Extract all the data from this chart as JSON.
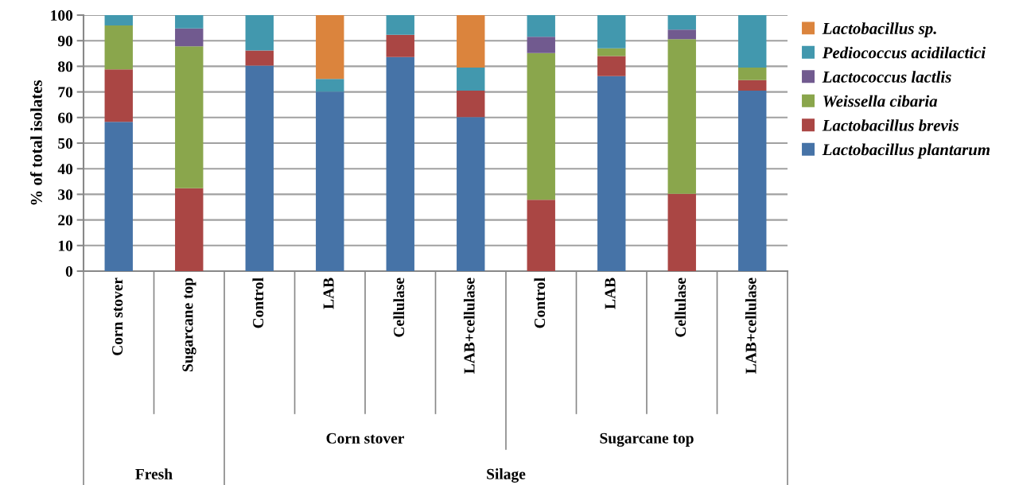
{
  "chart_data": {
    "type": "bar",
    "stacked": true,
    "ylabel": "% of total isolates",
    "categories": [
      "Corn stover",
      "Sugarcane top",
      "Control",
      "LAB",
      "Cellulase",
      "LAB+cellulase",
      "Control",
      "LAB",
      "Cellulase",
      "LAB+cellulase"
    ],
    "series": [
      {
        "name": "Lactobacillus plantarum",
        "color": "#4673a7",
        "values": [
          58.3,
          0,
          80.3,
          70.1,
          83.6,
          60.2,
          0,
          76.2,
          0,
          70.5
        ]
      },
      {
        "name": "Lactobacillus brevis",
        "color": "#aa4644",
        "values": [
          20.5,
          32.4,
          5.9,
          0,
          8.7,
          10.3,
          27.9,
          7.8,
          30.2,
          4.1
        ]
      },
      {
        "name": "Weissella cibaria",
        "color": "#8aa64c",
        "values": [
          17.2,
          55.4,
          0,
          0,
          0,
          0,
          57.3,
          3,
          60.4,
          4.9
        ]
      },
      {
        "name": "Lactococcus lactlis",
        "color": "#715a8f",
        "values": [
          0,
          7,
          0,
          0,
          0,
          0,
          6.3,
          0,
          3.7,
          0
        ]
      },
      {
        "name": "Pediococcus acidilactici",
        "color": "#4298ae",
        "values": [
          4,
          5.2,
          13.8,
          5,
          7.7,
          9,
          8.5,
          13,
          5.7,
          20.5
        ]
      },
      {
        "name": "Lactobacillus sp.",
        "color": "#db843d",
        "values": [
          0,
          0,
          0,
          25,
          0,
          20.5,
          0,
          0,
          0,
          0
        ]
      }
    ],
    "ylim": [
      0,
      100
    ],
    "yticks": [
      0,
      10,
      20,
      30,
      40,
      50,
      60,
      70,
      80,
      90,
      100
    ],
    "grid": "y",
    "legend": "right",
    "annotations": [
      "Corn stover",
      "Sugarcane top",
      "Fresh",
      "Silage"
    ]
  }
}
